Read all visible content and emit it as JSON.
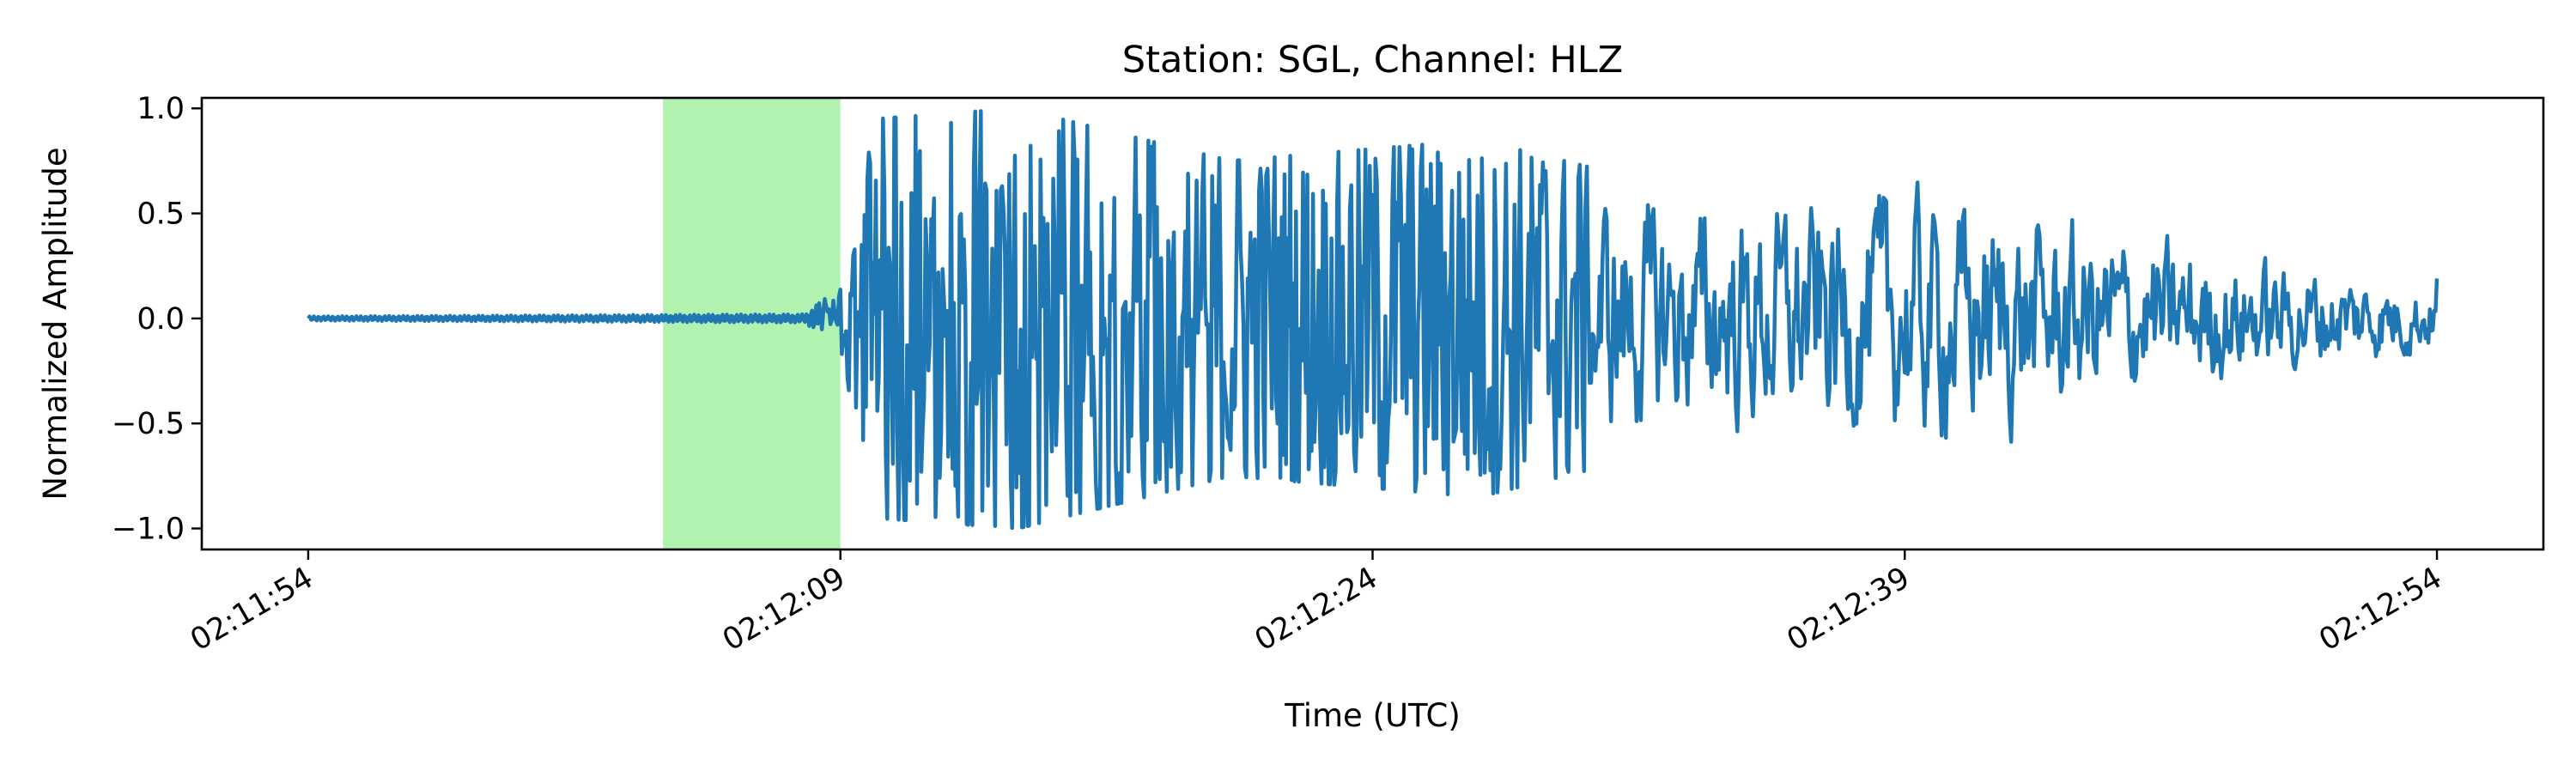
{
  "chart_data": {
    "type": "line",
    "title": "Station: SGL, Channel: HLZ",
    "xlabel": "Time (UTC)",
    "ylabel": "Normalized Amplitude",
    "xlim": [
      "02:11:51",
      "02:12:57"
    ],
    "ylim": [
      -1.1,
      1.05
    ],
    "x_ticks": [
      "02:11:54",
      "02:12:09",
      "02:12:24",
      "02:12:39",
      "02:12:54"
    ],
    "y_ticks": [
      "1.0",
      "0.5",
      "0.0",
      "−0.5",
      "−1.0"
    ],
    "y_tick_values": [
      1.0,
      0.5,
      0.0,
      -0.5,
      -1.0
    ],
    "grid": false,
    "legend": "none",
    "highlight": {
      "x_start": "02:12:04",
      "x_end": "02:12:09",
      "color": "#b2f2b1"
    },
    "series": [
      {
        "color": "#1f77b4",
        "x_start": "02:11:54",
        "x_end": "02:12:54",
        "approx_amplitude_envelope": [
          [
            "02:11:54",
            0.01
          ],
          [
            "02:12:08",
            0.02
          ],
          [
            "02:12:09",
            0.15
          ],
          [
            "02:12:10",
            0.95
          ],
          [
            "02:12:14",
            1.0
          ],
          [
            "02:12:20",
            0.75
          ],
          [
            "02:12:27",
            0.85
          ],
          [
            "02:12:33",
            0.6
          ],
          [
            "02:12:40",
            0.67
          ],
          [
            "02:12:48",
            0.35
          ],
          [
            "02:12:54",
            0.18
          ]
        ],
        "end_value": 0.19
      }
    ]
  }
}
